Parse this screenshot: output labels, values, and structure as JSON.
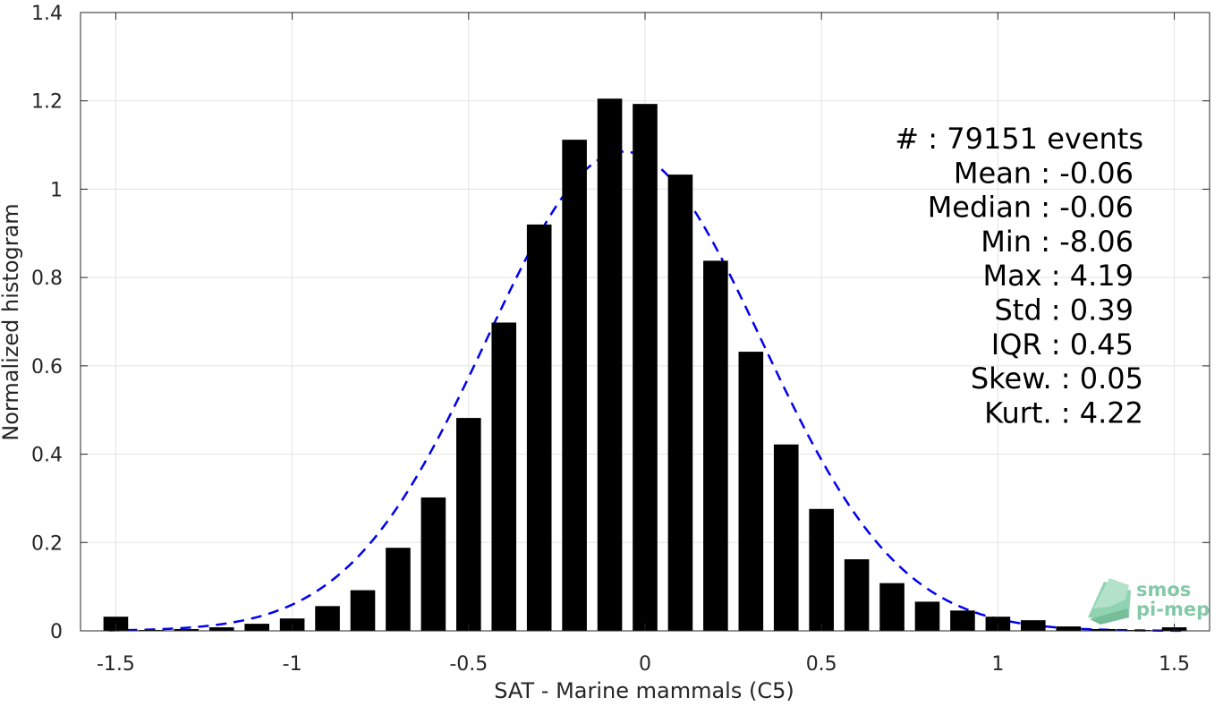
{
  "chart_data": {
    "type": "bar",
    "title": "",
    "xlabel": "SAT - Marine mammals (C5)",
    "ylabel": "Normalized histogram",
    "xlim": [
      -1.6,
      1.6
    ],
    "ylim": [
      0,
      1.4
    ],
    "grid": true,
    "x_ticks": [
      "-1.5",
      "-1",
      "-0.5",
      "0",
      "0.5",
      "1",
      "1.5"
    ],
    "y_ticks": [
      "0",
      "0.2",
      "0.4",
      "0.6",
      "0.8",
      "1",
      "1.2",
      "1.4"
    ],
    "bar_width": 0.07,
    "bar_color": "#000000",
    "x": [
      -1.5,
      -1.4,
      -1.3,
      -1.2,
      -1.1,
      -1.0,
      -0.9,
      -0.8,
      -0.7,
      -0.6,
      -0.5,
      -0.4,
      -0.3,
      -0.2,
      -0.1,
      0.0,
      0.1,
      0.2,
      0.3,
      0.4,
      0.5,
      0.6,
      0.7,
      0.8,
      0.9,
      1.0,
      1.1,
      1.2,
      1.3,
      1.4,
      1.5
    ],
    "values": [
      0.032,
      0.002,
      0.004,
      0.008,
      0.016,
      0.028,
      0.056,
      0.092,
      0.188,
      0.302,
      0.482,
      0.698,
      0.92,
      1.112,
      1.205,
      1.193,
      1.033,
      0.838,
      0.632,
      0.422,
      0.276,
      0.162,
      0.108,
      0.066,
      0.046,
      0.032,
      0.024,
      0.01,
      0.004,
      0.002,
      0.008
    ],
    "fit_curve": {
      "type": "normal",
      "style": "dashed",
      "color": "#0000ee",
      "mean": -0.06,
      "std": 0.39,
      "scale": 1.085
    },
    "stats": [
      {
        "label": "#  : 79151 events"
      },
      {
        "label": "Mean : -0.06"
      },
      {
        "label": "Median : -0.06"
      },
      {
        "label": "Min : -8.06"
      },
      {
        "label": "Max : 4.19"
      },
      {
        "label": "Std : 0.39"
      },
      {
        "label": "IQR : 0.45"
      },
      {
        "label": "Skew. : 0.05"
      },
      {
        "label": "Kurt. : 4.22"
      }
    ]
  },
  "logo": {
    "line1": "smos",
    "line2": "pi-mep",
    "color": "#5cb88a"
  }
}
